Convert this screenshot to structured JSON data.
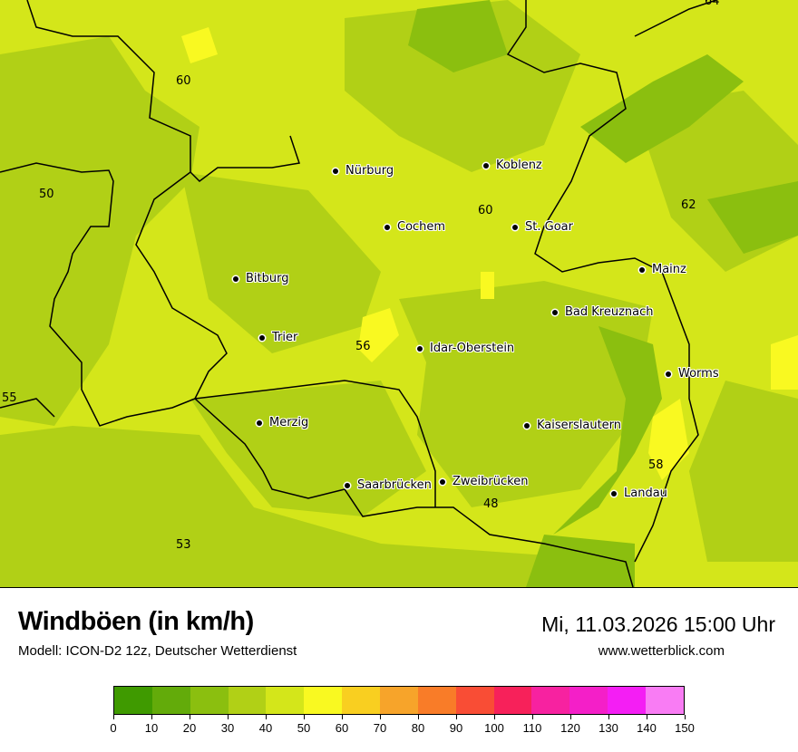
{
  "title": "Windböen (in km/h)",
  "subtitle": "Modell: ICON-D2 12z, Deutscher Wetterdienst",
  "datetime": "Mi, 11.03.2026 15:00 Uhr",
  "website": "www.wetterblick.com",
  "cities": [
    {
      "name": "Nürburg"
    },
    {
      "name": "Koblenz"
    },
    {
      "name": "Cochem"
    },
    {
      "name": "St. Goar"
    },
    {
      "name": "Mainz"
    },
    {
      "name": "Bitburg"
    },
    {
      "name": "Bad Kreuznach"
    },
    {
      "name": "Trier"
    },
    {
      "name": "Idar-Oberstein"
    },
    {
      "name": "Worms"
    },
    {
      "name": "Merzig"
    },
    {
      "name": "Kaiserslautern"
    },
    {
      "name": "Saarbrücken"
    },
    {
      "name": "Zweibrücken"
    },
    {
      "name": "Landau"
    }
  ],
  "max_values": [
    "64",
    "60",
    "50",
    "55",
    "60",
    "62",
    "56",
    "58",
    "48",
    "53"
  ],
  "legend": {
    "ticks": [
      "0",
      "10",
      "20",
      "30",
      "40",
      "50",
      "60",
      "70",
      "80",
      "90",
      "100",
      "110",
      "120",
      "130",
      "140",
      "150"
    ],
    "colors": [
      "#3f9a00",
      "#63ab0a",
      "#8bbf0f",
      "#b1d016",
      "#d4e61a",
      "#f9f921",
      "#f9cf20",
      "#f7a42a",
      "#f97c28",
      "#f94d35",
      "#f7215a",
      "#f722a0",
      "#f41fc8",
      "#f41ef4",
      "#f97cf4"
    ]
  },
  "map_colors": {
    "base": "#d4e61a",
    "mid": "#b1d016",
    "low": "#8bbf0f",
    "high": "#f9f921"
  }
}
